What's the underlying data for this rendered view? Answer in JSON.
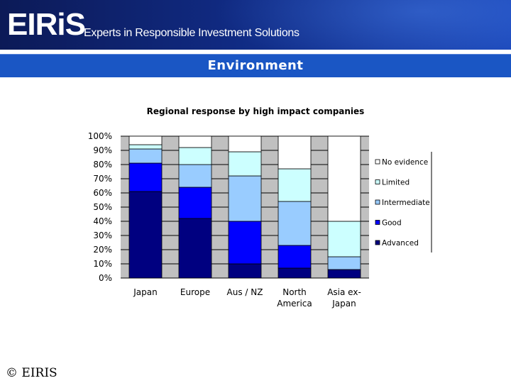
{
  "header": {
    "logo": "EIRiS",
    "tagline": "Experts in Responsible Investment Solutions"
  },
  "section_title": "Environment",
  "footer": {
    "copyright": "© EIRIS"
  },
  "colors": {
    "banner": "#102a82",
    "title_bar": "#1a56c4",
    "plot_bg": "#c0c0c0",
    "advanced": "#000080",
    "good": "#0000ff",
    "intermediate": "#99ccff",
    "limited": "#ccffff",
    "no_evidence": "#ffffff"
  },
  "chart_data": {
    "type": "bar",
    "stacked": true,
    "title": "Regional response by high impact companies",
    "categories": [
      "Japan",
      "Europe",
      "Aus / NZ",
      "North America",
      "Asia ex-Japan"
    ],
    "category_lines": [
      [
        "Japan"
      ],
      [
        "Europe"
      ],
      [
        "Aus / NZ"
      ],
      [
        "North",
        "America"
      ],
      [
        "Asia ex-",
        "Japan"
      ]
    ],
    "series": [
      {
        "name": "Advanced",
        "values": [
          61,
          42,
          10,
          7,
          6
        ]
      },
      {
        "name": "Good",
        "values": [
          20,
          22,
          30,
          16,
          0
        ]
      },
      {
        "name": "Intermediate",
        "values": [
          10,
          16,
          32,
          31,
          9
        ]
      },
      {
        "name": "Limited",
        "values": [
          3,
          12,
          17,
          23,
          25
        ]
      },
      {
        "name": "No evidence",
        "values": [
          6,
          8,
          11,
          23,
          60
        ]
      }
    ],
    "legend_order": [
      "No evidence",
      "Limited",
      "Intermediate",
      "Good",
      "Advanced"
    ],
    "ylim": [
      0,
      100
    ],
    "yticks": [
      "100%",
      "90%",
      "80%",
      "70%",
      "60%",
      "50%",
      "40%",
      "30%",
      "20%",
      "10%",
      "0%"
    ],
    "legend_position": "right",
    "grid": true
  }
}
